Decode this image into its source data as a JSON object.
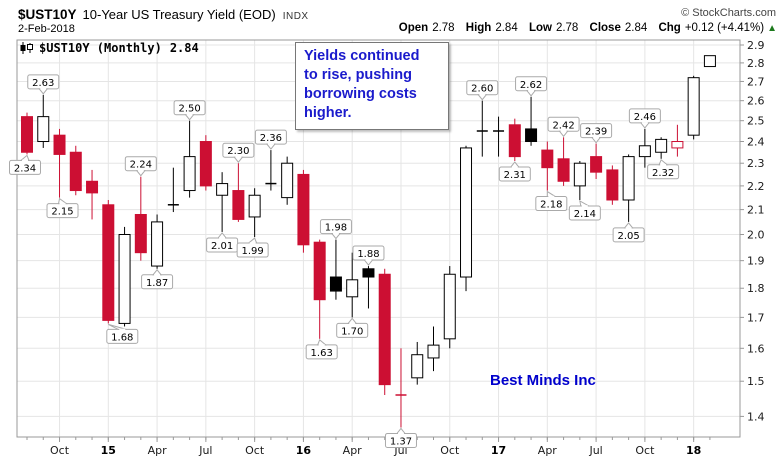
{
  "header": {
    "symbol": "$UST10Y",
    "title": "10-Year US Treasury Yield (EOD)",
    "exchange": "INDX",
    "copyright": "© StockCharts.com",
    "date": "2-Feb-2018",
    "quote": {
      "open_label": "Open",
      "open": "2.78",
      "high_label": "High",
      "high": "2.84",
      "low_label": "Low",
      "low": "2.78",
      "close_label": "Close",
      "close": "2.84",
      "chg_label": "Chg",
      "chg": "+0.12 (+4.41%)",
      "direction_icon": "▲"
    }
  },
  "legend": {
    "symbol_period": "$UST10Y (Monthly)",
    "last": "2.84"
  },
  "annotation": {
    "lines": [
      "Yields continued",
      "to rise, pushing",
      "borrowing costs",
      "higher."
    ]
  },
  "watermark": "Best Minds Inc",
  "colors": {
    "red": "#cc0f33",
    "black": "#000000",
    "grid": "#e5e5e5",
    "frame": "#999999",
    "callout_border": "#aaaaaa",
    "callout_bg": "#ffffff",
    "axis_text": "#1a1a1a",
    "annotation_text": "#1a1acc",
    "watermark_text": "#0000cc",
    "chg_up_green": "#1d7a1d"
  },
  "chart_data": {
    "type": "candlestick",
    "period": "Monthly",
    "y_scale": "log",
    "ylim": [
      1.36,
      2.93
    ],
    "y_tick_labels": [
      "2.9",
      "2.8",
      "2.7",
      "2.6",
      "2.5",
      "2.4",
      "2.3",
      "2.2",
      "2.1",
      "2.0",
      "1.9",
      "1.8",
      "1.7",
      "1.6",
      "1.5",
      "1.4"
    ],
    "x_axis": {
      "ticks": [
        {
          "i": 2,
          "label": "Oct",
          "bold": false
        },
        {
          "i": 5,
          "label": "15",
          "bold": true
        },
        {
          "i": 8,
          "label": "Apr",
          "bold": false
        },
        {
          "i": 11,
          "label": "Jul",
          "bold": false
        },
        {
          "i": 14,
          "label": "Oct",
          "bold": false
        },
        {
          "i": 17,
          "label": "16",
          "bold": true
        },
        {
          "i": 20,
          "label": "Apr",
          "bold": false
        },
        {
          "i": 23,
          "label": "Jul",
          "bold": false
        },
        {
          "i": 26,
          "label": "Oct",
          "bold": false
        },
        {
          "i": 29,
          "label": "17",
          "bold": true
        },
        {
          "i": 32,
          "label": "Apr",
          "bold": false
        },
        {
          "i": 35,
          "label": "Jul",
          "bold": false
        },
        {
          "i": 38,
          "label": "Oct",
          "bold": false
        },
        {
          "i": 41,
          "label": "18",
          "bold": true
        }
      ]
    },
    "candles": [
      {
        "month": "Aug 2014",
        "o": 2.52,
        "h": 2.54,
        "l": 2.34,
        "c": 2.35,
        "color": "red",
        "fill": "solid"
      },
      {
        "month": "Sep 2014",
        "o": 2.4,
        "h": 2.63,
        "l": 2.37,
        "c": 2.52,
        "color": "black",
        "fill": "hollow"
      },
      {
        "month": "Oct 2014",
        "o": 2.43,
        "h": 2.46,
        "l": 2.15,
        "c": 2.34,
        "color": "red",
        "fill": "solid"
      },
      {
        "month": "Nov 2014",
        "o": 2.35,
        "h": 2.38,
        "l": 2.16,
        "c": 2.18,
        "color": "red",
        "fill": "solid"
      },
      {
        "month": "Dec 2014",
        "o": 2.22,
        "h": 2.27,
        "l": 2.06,
        "c": 2.17,
        "color": "red",
        "fill": "solid"
      },
      {
        "month": "Jan 2015",
        "o": 2.12,
        "h": 2.14,
        "l": 1.68,
        "c": 1.69,
        "color": "red",
        "fill": "solid"
      },
      {
        "month": "Feb 2015",
        "o": 1.68,
        "h": 2.03,
        "l": 1.67,
        "c": 2.0,
        "color": "black",
        "fill": "hollow"
      },
      {
        "month": "Mar 2015",
        "o": 2.08,
        "h": 2.24,
        "l": 1.9,
        "c": 1.93,
        "color": "red",
        "fill": "solid"
      },
      {
        "month": "Apr 2015",
        "o": 1.88,
        "h": 2.08,
        "l": 1.87,
        "c": 2.05,
        "color": "black",
        "fill": "hollow"
      },
      {
        "month": "May 2015",
        "o": 2.12,
        "h": 2.28,
        "l": 2.09,
        "c": 2.12,
        "color": "black",
        "fill": "doji"
      },
      {
        "month": "Jun 2015",
        "o": 2.18,
        "h": 2.5,
        "l": 2.15,
        "c": 2.33,
        "color": "black",
        "fill": "hollow"
      },
      {
        "month": "Jul 2015",
        "o": 2.4,
        "h": 2.43,
        "l": 2.18,
        "c": 2.2,
        "color": "red",
        "fill": "solid"
      },
      {
        "month": "Aug 2015",
        "o": 2.16,
        "h": 2.26,
        "l": 2.01,
        "c": 2.21,
        "color": "black",
        "fill": "hollow"
      },
      {
        "month": "Sep 2015",
        "o": 2.18,
        "h": 2.3,
        "l": 2.05,
        "c": 2.06,
        "color": "red",
        "fill": "solid"
      },
      {
        "month": "Oct 2015",
        "o": 2.07,
        "h": 2.19,
        "l": 1.99,
        "c": 2.16,
        "color": "black",
        "fill": "hollow"
      },
      {
        "month": "Nov 2015",
        "o": 2.21,
        "h": 2.36,
        "l": 2.18,
        "c": 2.21,
        "color": "black",
        "fill": "doji"
      },
      {
        "month": "Dec 2015",
        "o": 2.15,
        "h": 2.33,
        "l": 2.12,
        "c": 2.3,
        "color": "black",
        "fill": "hollow"
      },
      {
        "month": "Jan 2016",
        "o": 2.25,
        "h": 2.27,
        "l": 1.93,
        "c": 1.96,
        "color": "red",
        "fill": "solid"
      },
      {
        "month": "Feb 2016",
        "o": 1.97,
        "h": 1.98,
        "l": 1.63,
        "c": 1.76,
        "color": "red",
        "fill": "solid"
      },
      {
        "month": "Mar 2016",
        "o": 1.84,
        "h": 1.98,
        "l": 1.76,
        "c": 1.79,
        "color": "black",
        "fill": "solid"
      },
      {
        "month": "Apr 2016",
        "o": 1.77,
        "h": 1.93,
        "l": 1.7,
        "c": 1.83,
        "color": "black",
        "fill": "hollow"
      },
      {
        "month": "May 2016",
        "o": 1.87,
        "h": 1.88,
        "l": 1.73,
        "c": 1.84,
        "color": "black",
        "fill": "solid"
      },
      {
        "month": "Jun 2016",
        "o": 1.85,
        "h": 1.87,
        "l": 1.46,
        "c": 1.49,
        "color": "red",
        "fill": "solid"
      },
      {
        "month": "Jul 2016",
        "o": 1.46,
        "h": 1.6,
        "l": 1.37,
        "c": 1.46,
        "color": "red",
        "fill": "doji"
      },
      {
        "month": "Aug 2016",
        "o": 1.51,
        "h": 1.62,
        "l": 1.49,
        "c": 1.58,
        "color": "black",
        "fill": "hollow"
      },
      {
        "month": "Sep 2016",
        "o": 1.57,
        "h": 1.67,
        "l": 1.53,
        "c": 1.61,
        "color": "black",
        "fill": "hollow"
      },
      {
        "month": "Oct 2016",
        "o": 1.63,
        "h": 1.88,
        "l": 1.6,
        "c": 1.85,
        "color": "black",
        "fill": "hollow"
      },
      {
        "month": "Nov 2016",
        "o": 1.84,
        "h": 2.38,
        "l": 1.79,
        "c": 2.37,
        "color": "black",
        "fill": "hollow"
      },
      {
        "month": "Dec 2016",
        "o": 2.45,
        "h": 2.6,
        "l": 2.33,
        "c": 2.45,
        "color": "black",
        "fill": "doji"
      },
      {
        "month": "Jan 2017",
        "o": 2.46,
        "h": 2.52,
        "l": 2.33,
        "c": 2.45,
        "color": "black",
        "fill": "doji"
      },
      {
        "month": "Feb 2017",
        "o": 2.48,
        "h": 2.51,
        "l": 2.31,
        "c": 2.33,
        "color": "red",
        "fill": "solid"
      },
      {
        "month": "Mar 2017",
        "o": 2.46,
        "h": 2.62,
        "l": 2.38,
        "c": 2.4,
        "color": "black",
        "fill": "solid"
      },
      {
        "month": "Apr 2017",
        "o": 2.36,
        "h": 2.4,
        "l": 2.18,
        "c": 2.28,
        "color": "red",
        "fill": "solid"
      },
      {
        "month": "May 2017",
        "o": 2.32,
        "h": 2.42,
        "l": 2.2,
        "c": 2.22,
        "color": "red",
        "fill": "solid"
      },
      {
        "month": "Jun 2017",
        "o": 2.2,
        "h": 2.31,
        "l": 2.14,
        "c": 2.3,
        "color": "black",
        "fill": "hollow"
      },
      {
        "month": "Jul 2017",
        "o": 2.33,
        "h": 2.39,
        "l": 2.23,
        "c": 2.26,
        "color": "red",
        "fill": "solid"
      },
      {
        "month": "Aug 2017",
        "o": 2.27,
        "h": 2.29,
        "l": 2.12,
        "c": 2.14,
        "color": "red",
        "fill": "solid"
      },
      {
        "month": "Sep 2017",
        "o": 2.14,
        "h": 2.34,
        "l": 2.05,
        "c": 2.33,
        "color": "black",
        "fill": "hollow"
      },
      {
        "month": "Oct 2017",
        "o": 2.33,
        "h": 2.46,
        "l": 2.28,
        "c": 2.38,
        "color": "black",
        "fill": "hollow"
      },
      {
        "month": "Nov 2017",
        "o": 2.35,
        "h": 2.42,
        "l": 2.32,
        "c": 2.41,
        "color": "black",
        "fill": "hollow"
      },
      {
        "month": "Dec 2017",
        "o": 2.37,
        "h": 2.48,
        "l": 2.33,
        "c": 2.4,
        "color": "red",
        "fill": "hollow"
      },
      {
        "month": "Jan 2018",
        "o": 2.43,
        "h": 2.73,
        "l": 2.41,
        "c": 2.72,
        "color": "black",
        "fill": "hollow"
      },
      {
        "month": "Feb 2018",
        "o": 2.78,
        "h": 2.84,
        "l": 2.78,
        "c": 2.84,
        "color": "black",
        "fill": "hollow"
      }
    ],
    "callouts": [
      {
        "i": 0,
        "text": "2.34",
        "side": "below",
        "dx": -2
      },
      {
        "i": 1,
        "text": "2.63",
        "side": "above",
        "dx": 0
      },
      {
        "i": 2,
        "text": "2.15",
        "side": "below",
        "dx": 3
      },
      {
        "i": 5,
        "text": "1.68",
        "side": "below",
        "dx": 14
      },
      {
        "i": 7,
        "text": "2.24",
        "side": "above",
        "dx": 0
      },
      {
        "i": 8,
        "text": "1.87",
        "side": "below",
        "dx": 0
      },
      {
        "i": 10,
        "text": "2.50",
        "side": "above",
        "dx": 0
      },
      {
        "i": 12,
        "text": "2.01",
        "side": "below",
        "dx": 0
      },
      {
        "i": 13,
        "text": "2.30",
        "side": "above",
        "dx": 0
      },
      {
        "i": 14,
        "text": "1.99",
        "side": "below",
        "dx": -2
      },
      {
        "i": 15,
        "text": "2.36",
        "side": "above",
        "dx": 0
      },
      {
        "i": 18,
        "text": "1.63",
        "side": "below",
        "dx": 2
      },
      {
        "i": 19,
        "text": "1.98",
        "side": "above",
        "dx": 0
      },
      {
        "i": 20,
        "text": "1.70",
        "side": "below",
        "dx": 0
      },
      {
        "i": 21,
        "text": "1.88",
        "side": "above",
        "dx": 0
      },
      {
        "i": 23,
        "text": "1.37",
        "side": "below",
        "dx": 0
      },
      {
        "i": 28,
        "text": "2.60",
        "side": "above",
        "dx": 0
      },
      {
        "i": 30,
        "text": "2.31",
        "side": "below",
        "dx": 0
      },
      {
        "i": 31,
        "text": "2.62",
        "side": "above",
        "dx": 0
      },
      {
        "i": 32,
        "text": "2.18",
        "side": "below",
        "dx": 4
      },
      {
        "i": 33,
        "text": "2.42",
        "side": "above",
        "dx": 0
      },
      {
        "i": 34,
        "text": "2.14",
        "side": "below",
        "dx": 5
      },
      {
        "i": 35,
        "text": "2.39",
        "side": "above",
        "dx": 0
      },
      {
        "i": 37,
        "text": "2.05",
        "side": "below",
        "dx": 0
      },
      {
        "i": 38,
        "text": "2.46",
        "side": "above",
        "dx": 0
      },
      {
        "i": 39,
        "text": "2.32",
        "side": "below",
        "dx": 2
      }
    ]
  }
}
